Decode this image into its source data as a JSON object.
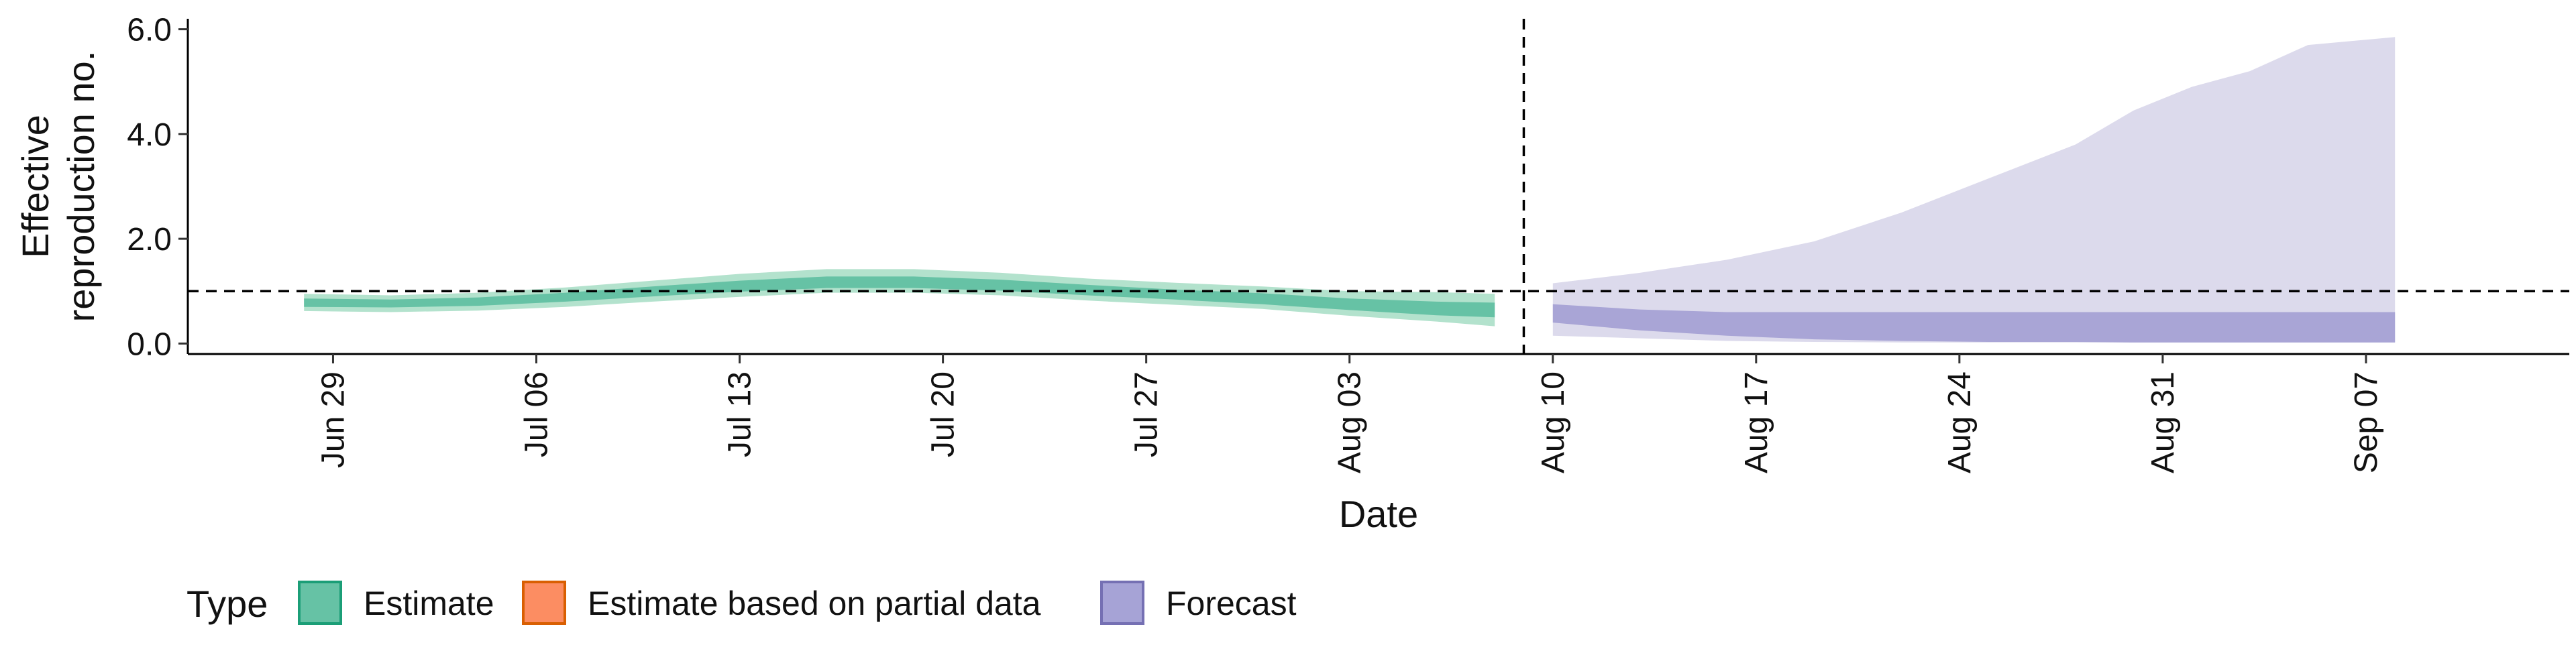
{
  "chart_data": {
    "type": "area",
    "ylabel": [
      "Effective",
      "reproduction no."
    ],
    "xlabel": "Date",
    "ylim": [
      -0.2,
      6.2
    ],
    "y_ticks": [
      0,
      2,
      4,
      6
    ],
    "y_tick_labels": [
      "0.0",
      "2.0",
      "4.0",
      "6.0"
    ],
    "x_domain": [
      "2020-06-24",
      "2020-09-14"
    ],
    "x_ticks": [
      "2020-06-29",
      "2020-07-06",
      "2020-07-13",
      "2020-07-20",
      "2020-07-27",
      "2020-08-03",
      "2020-08-10",
      "2020-08-17",
      "2020-08-24",
      "2020-08-31",
      "2020-09-07"
    ],
    "x_tick_labels": [
      "Jun 29",
      "Jul 06",
      "Jul 13",
      "Jul 20",
      "Jul 27",
      "Aug 03",
      "Aug 10",
      "Aug 17",
      "Aug 24",
      "Aug 31",
      "Sep 07"
    ],
    "reference_line_y": 1.0,
    "forecast_start_line": "2020-08-09",
    "grid": false,
    "legend": {
      "title": "Type",
      "position": "bottom",
      "items": [
        {
          "label": "Estimate",
          "color": "#66c2a5",
          "border": "#1b9e77"
        },
        {
          "label": "Estimate based on partial data",
          "color": "#fc8d62",
          "border": "#d95f02"
        },
        {
          "label": "Forecast",
          "color": "#a6a3d6",
          "border": "#7570b3"
        }
      ]
    },
    "colors": {
      "estimate_outer": "#b3e2cd",
      "estimate_inner": "#66c2a5",
      "forecast_outer": "#dcdaec",
      "forecast_inner": "#a9a5d6"
    },
    "series": [
      {
        "name": "Estimate",
        "x": [
          "2020-06-28",
          "2020-07-01",
          "2020-07-04",
          "2020-07-07",
          "2020-07-10",
          "2020-07-13",
          "2020-07-16",
          "2020-07-19",
          "2020-07-22",
          "2020-07-25",
          "2020-07-28",
          "2020-07-31",
          "2020-08-03",
          "2020-08-06",
          "2020-08-08"
        ],
        "upper_90": [
          0.95,
          0.92,
          0.97,
          1.07,
          1.2,
          1.33,
          1.42,
          1.42,
          1.35,
          1.24,
          1.16,
          1.09,
          1.0,
          0.98,
          0.95
        ],
        "lower_90": [
          0.62,
          0.6,
          0.63,
          0.7,
          0.8,
          0.89,
          0.97,
          0.97,
          0.92,
          0.82,
          0.74,
          0.66,
          0.53,
          0.42,
          0.33
        ],
        "upper_50": [
          0.86,
          0.84,
          0.88,
          0.97,
          1.09,
          1.2,
          1.28,
          1.28,
          1.22,
          1.12,
          1.03,
          0.96,
          0.86,
          0.8,
          0.78
        ],
        "lower_50": [
          0.7,
          0.69,
          0.72,
          0.8,
          0.9,
          0.99,
          1.06,
          1.06,
          1.01,
          0.92,
          0.84,
          0.75,
          0.64,
          0.54,
          0.5
        ]
      },
      {
        "name": "Forecast",
        "x": [
          "2020-08-10",
          "2020-08-13",
          "2020-08-16",
          "2020-08-19",
          "2020-08-22",
          "2020-08-25",
          "2020-08-28",
          "2020-08-30",
          "2020-09-01",
          "2020-09-03",
          "2020-09-05",
          "2020-09-08"
        ],
        "upper_90": [
          1.15,
          1.35,
          1.6,
          1.95,
          2.5,
          3.15,
          3.8,
          4.45,
          4.9,
          5.2,
          5.7,
          5.85
        ],
        "lower_90": [
          0.15,
          0.1,
          0.05,
          0.03,
          0.02,
          0.02,
          0.02,
          0.02,
          0.02,
          0.02,
          0.02,
          0.02
        ],
        "upper_50": [
          0.75,
          0.65,
          0.6,
          0.6,
          0.6,
          0.6,
          0.6,
          0.6,
          0.6,
          0.6,
          0.6,
          0.6
        ],
        "lower_50": [
          0.4,
          0.25,
          0.15,
          0.08,
          0.05,
          0.03,
          0.03,
          0.02,
          0.02,
          0.02,
          0.02,
          0.02
        ]
      }
    ]
  }
}
